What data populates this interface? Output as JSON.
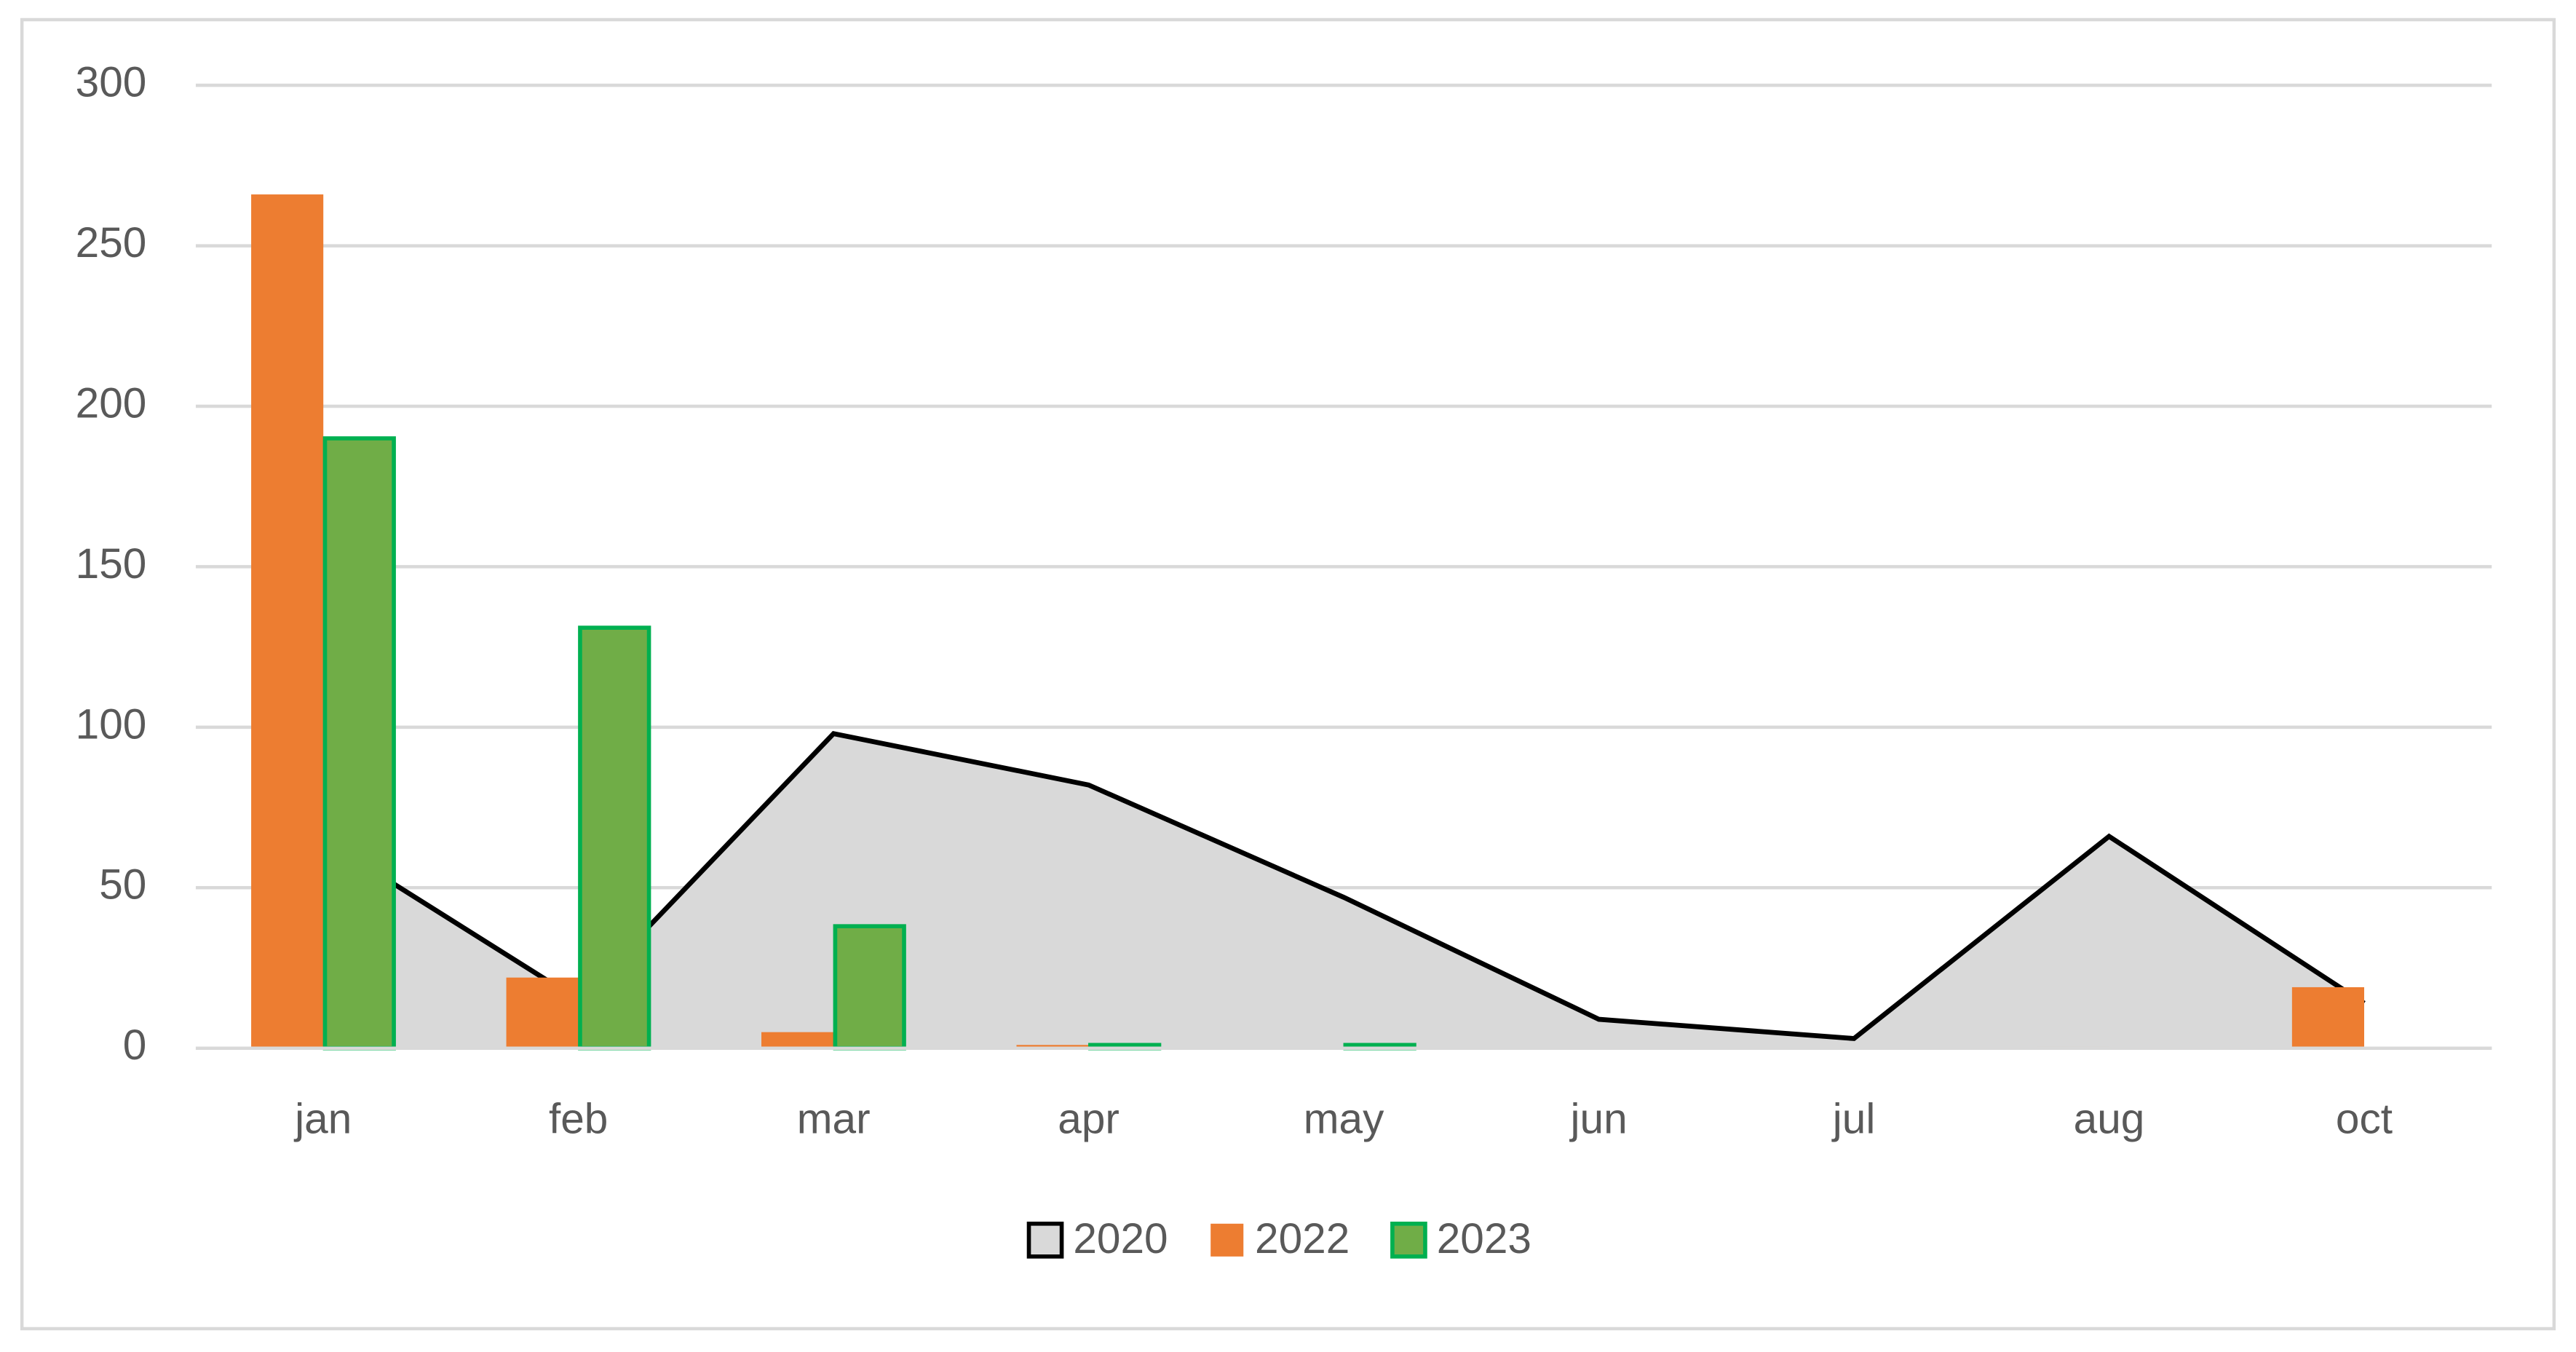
{
  "chart_data": {
    "type": "bar_area",
    "categories": [
      "jan",
      "feb",
      "mar",
      "apr",
      "may",
      "jun",
      "jul",
      "aug",
      "oct"
    ],
    "series": [
      {
        "name": "2020",
        "type": "area",
        "color": "#d9d9d9",
        "line_color": "#000000",
        "values": [
          65,
          15,
          98,
          82,
          47,
          9,
          3,
          66,
          14
        ]
      },
      {
        "name": "2022",
        "type": "bar",
        "color": "#ed7d31",
        "values": [
          266,
          22,
          5,
          1,
          0,
          0,
          0,
          0.5,
          19
        ]
      },
      {
        "name": "2023",
        "type": "bar",
        "color": "#70ad47",
        "edge_color": "#00b050",
        "values": [
          190,
          131,
          38,
          1,
          1,
          0,
          0,
          0,
          0
        ]
      }
    ],
    "ylim": [
      0,
      300
    ],
    "yticks": [
      0,
      50,
      100,
      150,
      200,
      250,
      300
    ],
    "grid": true,
    "legend": "bottom"
  }
}
